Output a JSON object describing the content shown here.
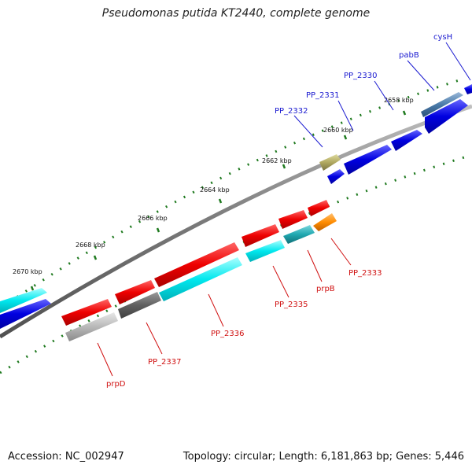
{
  "title": "Pseudomonas putida KT2440, complete genome",
  "footer": {
    "accession": "Accession: NC_002947",
    "summary": "Topology: circular; Length: 6,181,863 bp; Genes: 5,446"
  },
  "colors": {
    "forward_label": "#1a1ad0",
    "reverse_label": "#d01010",
    "backbone": "#808080",
    "tick": "#1f7a1f"
  },
  "ticks": [
    "2658 kbp",
    "2660 kbp",
    "2662 kbp",
    "2664 kbp",
    "2666 kbp",
    "2668 kbp",
    "2670 kbp"
  ],
  "genes": [
    {
      "name": "cysH",
      "strand": "+",
      "color": "#0000e0"
    },
    {
      "name": "pabB",
      "strand": "+",
      "color": "#4a7aa8"
    },
    {
      "name": "PP_2330",
      "strand": "+",
      "color": "#0000e0"
    },
    {
      "name": "PP_2331",
      "strand": "+",
      "color": "#0000e0"
    },
    {
      "name": "PP_2332",
      "strand": "+",
      "color": "#b0a860"
    },
    {
      "name": "PP_2333",
      "strand": "-",
      "color": "#ff8c00"
    },
    {
      "name": "prpB",
      "strand": "-",
      "color": "#20c8d0"
    },
    {
      "name": "PP_2335",
      "strand": "-",
      "color": "#00e8ee"
    },
    {
      "name": "PP_2336",
      "strand": "-",
      "color": "#00e8ee"
    },
    {
      "name": "PP_2337",
      "strand": "-",
      "color": "#606060"
    },
    {
      "name": "prpD",
      "strand": "-",
      "color": "#b0b0b0"
    }
  ]
}
